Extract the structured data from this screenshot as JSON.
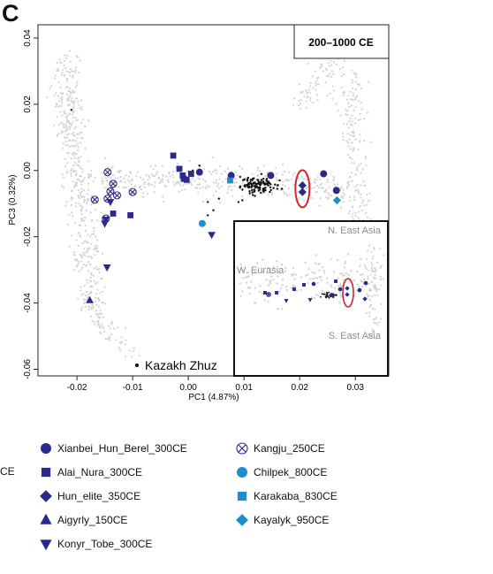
{
  "panel_letter": "C",
  "stray_text": "CE",
  "period_label": "200–1000 CE",
  "colors": {
    "marker_blue": "#2b2a8c",
    "marker_light_blue": "#1b8fd0",
    "background_dots": "#d3d3d3",
    "kazakh_dots": "#111111",
    "highlight_ellipse": "#d8232a"
  },
  "chart_data": {
    "type": "scatter",
    "xlabel": "PC1 (4.87%)",
    "ylabel": "PC3 (0.32%)",
    "xlim": [
      -0.027,
      0.036
    ],
    "ylim": [
      -0.062,
      0.044
    ],
    "xticks": [
      -0.02,
      -0.01,
      0.0,
      0.01,
      0.02,
      0.03
    ],
    "xtick_labels": [
      "-0.02",
      "-0.01",
      "0.00",
      "0.01",
      "0.02",
      "0.03"
    ],
    "yticks": [
      -0.06,
      -0.04,
      -0.02,
      0.0,
      0.02,
      0.04
    ],
    "ytick_labels": [
      "-0.06",
      "-0.04",
      "-0.02",
      "0.00",
      "0.02",
      "0.04"
    ],
    "annotation": "Kazakh Zhuz",
    "inset_labels": {
      "top_right": "N. East Asia",
      "left": "W. Eurasia",
      "bottom_right": "S. East Asia"
    },
    "series": [
      {
        "name": "Xianbei_Hun_Berel_300CE",
        "marker": "circle",
        "color": "#2b2a8c",
        "points": [
          [
            0.002,
            -0.0005
          ],
          [
            0.0077,
            -0.0015
          ],
          [
            0.0148,
            -0.0015
          ],
          [
            0.0243,
            -0.001
          ],
          [
            0.0266,
            -0.006
          ]
        ]
      },
      {
        "name": "Alai_Nura_300CE",
        "marker": "square",
        "color": "#2b2a8c",
        "points": [
          [
            -0.0027,
            0.0045
          ],
          [
            -0.0016,
            0.0005
          ],
          [
            -0.0008,
            -0.0025
          ],
          [
            -0.0003,
            -0.0028
          ],
          [
            -0.0135,
            -0.013
          ],
          [
            -0.0104,
            -0.0135
          ],
          [
            -0.001,
            -0.0015
          ],
          [
            0.0005,
            -0.001
          ]
        ]
      },
      {
        "name": "Hun_elite_350CE",
        "marker": "diamond",
        "color": "#2b2a8c",
        "points": [
          [
            0.0205,
            -0.0045
          ],
          [
            0.0205,
            -0.0065
          ]
        ]
      },
      {
        "name": "Aigyrly_150CE",
        "marker": "triangle-up",
        "color": "#2b2a8c",
        "points": [
          [
            -0.0177,
            -0.0392
          ]
        ]
      },
      {
        "name": "Konyr_Tobe_300CE",
        "marker": "triangle-down",
        "color": "#2b2a8c",
        "points": [
          [
            -0.0148,
            -0.0148
          ],
          [
            -0.015,
            -0.016
          ],
          [
            -0.014,
            -0.0095
          ],
          [
            -0.0146,
            -0.0292
          ],
          [
            0.0042,
            -0.0194
          ]
        ]
      },
      {
        "name": "Kangju_250CE",
        "marker": "circle-x",
        "color": "#2b2a8c",
        "points": [
          [
            -0.0145,
            -0.0005
          ],
          [
            -0.0135,
            -0.004
          ],
          [
            -0.0168,
            -0.0088
          ],
          [
            -0.0128,
            -0.0075
          ],
          [
            -0.0145,
            -0.0085
          ],
          [
            -0.01,
            -0.0065
          ],
          [
            -0.0148,
            -0.0145
          ],
          [
            -0.014,
            -0.0063
          ]
        ]
      },
      {
        "name": "Chilpek_800CE",
        "marker": "circle",
        "color": "#1b8fd0",
        "points": [
          [
            0.0025,
            -0.016
          ]
        ]
      },
      {
        "name": "Karakaba_830CE",
        "marker": "square",
        "color": "#1b8fd0",
        "points": [
          [
            0.0075,
            -0.003
          ]
        ]
      },
      {
        "name": "Kayalyk_950CE",
        "marker": "diamond",
        "color": "#1b8fd0",
        "points": [
          [
            0.0267,
            -0.009
          ]
        ]
      }
    ]
  }
}
